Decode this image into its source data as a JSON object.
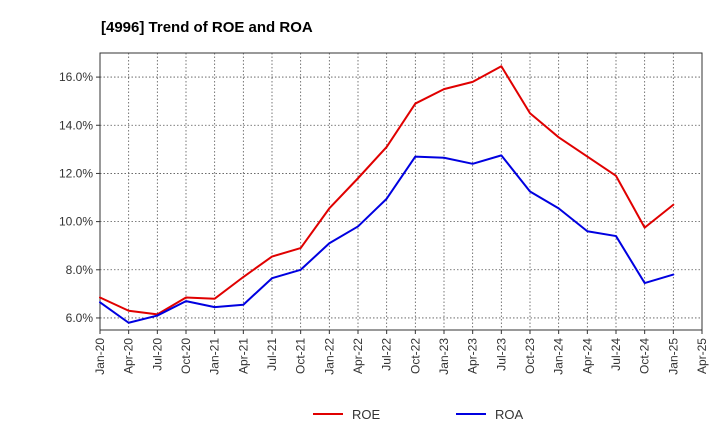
{
  "chart_data": {
    "type": "line",
    "title": "[4996]  Trend of ROE and ROA",
    "xlabel": "",
    "ylabel": "",
    "x": [
      "Jan-20",
      "Apr-20",
      "Jul-20",
      "Oct-20",
      "Jan-21",
      "Apr-21",
      "Jul-21",
      "Oct-21",
      "Jan-22",
      "Apr-22",
      "Jul-22",
      "Oct-22",
      "Jan-23",
      "Apr-23",
      "Jul-23",
      "Oct-23",
      "Jan-24",
      "Apr-24",
      "Jul-24",
      "Oct-24",
      "Jan-25"
    ],
    "x_tick_labels": [
      "Jan-20",
      "Apr-20",
      "Jul-20",
      "Oct-20",
      "Jan-21",
      "Apr-21",
      "Jul-21",
      "Oct-21",
      "Jan-22",
      "Apr-22",
      "Jul-22",
      "Oct-22",
      "Jan-23",
      "Apr-23",
      "Jul-23",
      "Oct-23",
      "Jan-24",
      "Apr-24",
      "Jul-24",
      "Oct-24",
      "Jan-25",
      "Apr-25"
    ],
    "y_ticks": [
      6.0,
      8.0,
      10.0,
      12.0,
      14.0,
      16.0
    ],
    "y_tick_labels": [
      "6.0%",
      "8.0%",
      "10.0%",
      "12.0%",
      "14.0%",
      "16.0%"
    ],
    "ylim": [
      5.5,
      17.0
    ],
    "grid": true,
    "legend_position": "bottom",
    "series": [
      {
        "name": "ROE",
        "color": "#e00000",
        "values": [
          6.85,
          6.3,
          6.15,
          6.85,
          6.8,
          7.7,
          8.55,
          8.9,
          10.55,
          11.8,
          13.1,
          14.9,
          15.5,
          15.8,
          16.45,
          14.5,
          13.5,
          12.7,
          11.9,
          9.75,
          10.7
        ]
      },
      {
        "name": "ROA",
        "color": "#0000e0",
        "values": [
          6.65,
          5.8,
          6.1,
          6.7,
          6.45,
          6.55,
          7.65,
          8.0,
          9.1,
          9.8,
          10.95,
          12.7,
          12.65,
          12.4,
          12.75,
          11.25,
          10.55,
          9.6,
          9.4,
          7.45,
          7.8
        ]
      }
    ]
  }
}
